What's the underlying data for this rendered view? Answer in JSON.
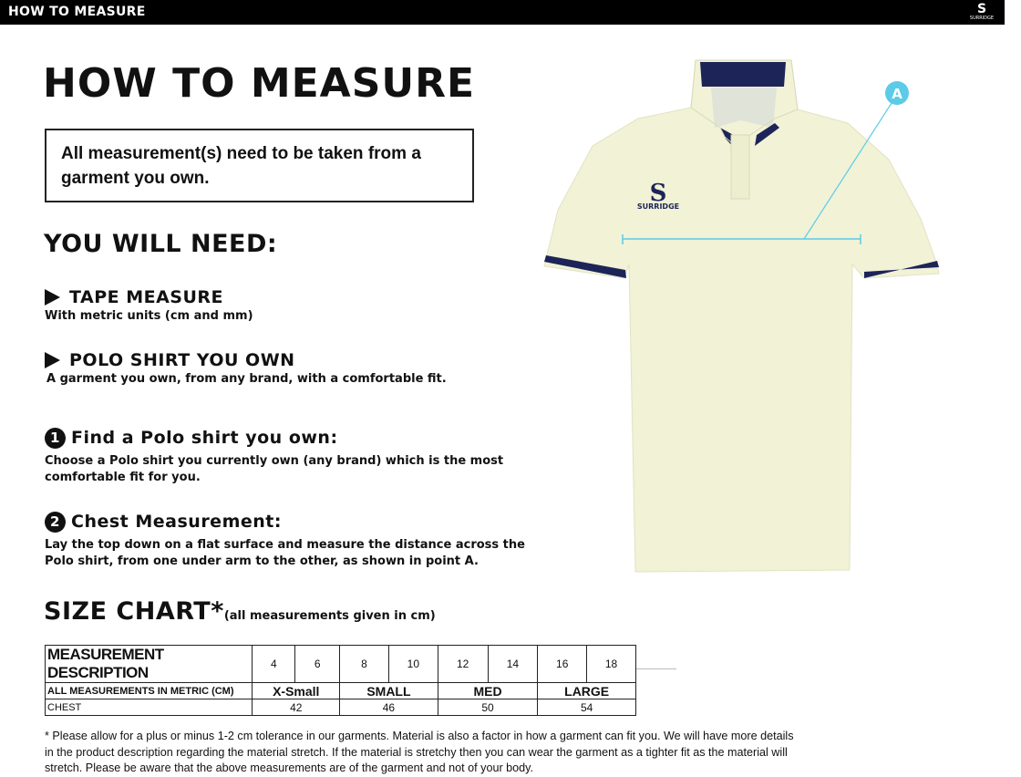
{
  "header": {
    "title": "HOW TO MEASURE",
    "logo_text": "SURRIDGE",
    "logo_mark": "S"
  },
  "main_title": "HOW TO MEASURE",
  "note": "All measurement(s) need to be taken from a garment you own.",
  "you_will_need": {
    "heading": "YOU WILL NEED:",
    "items": [
      {
        "title": "TAPE MEASURE",
        "description": "With metric units (cm and mm)"
      },
      {
        "title": "POLO SHIRT YOU OWN",
        "description": "A garment you own, from any brand, with a comfortable fit."
      }
    ]
  },
  "steps": [
    {
      "number": "1",
      "title": "Find a Polo shirt you own:",
      "description": "Choose a Polo shirt you currently own (any brand) which is the most comfortable fit for you."
    },
    {
      "number": "2",
      "title": "Chest Measurement:",
      "description": "Lay the top down on a flat surface and measure the distance across the Polo shirt, from one under arm to the other, as shown in point A."
    }
  ],
  "size_chart": {
    "heading": "SIZE CHART*",
    "subheading": "(all measurements given in cm)",
    "header_label": "MEASUREMENT DESCRIPTION",
    "sizes": [
      "4",
      "6",
      "8",
      "10",
      "12",
      "14",
      "16",
      "18"
    ],
    "metric_label": "ALL MEASUREMENTS IN METRIC (CM)",
    "groups": [
      "X-Small",
      "SMALL",
      "MED",
      "LARGE"
    ],
    "chest_label": "CHEST",
    "chest_values": [
      "42",
      "46",
      "50",
      "54"
    ]
  },
  "diagram": {
    "point_label": "A",
    "shirt_logo": "SURRIDGE",
    "shirt_color": "#f1f2d6",
    "trim_color": "#1d2458",
    "measure_color": "#5ccbe8"
  },
  "footnote": "* Please allow for a plus or minus 1-2 cm tolerance in our garments. Material is also a factor in how a garment can fit you. We will have more details in the product description regarding the material stretch.  If the material is stretchy then you can wear the garment as a tighter fit as the material will stretch.  Please be aware that the above measurements are of the garment and not of your body."
}
